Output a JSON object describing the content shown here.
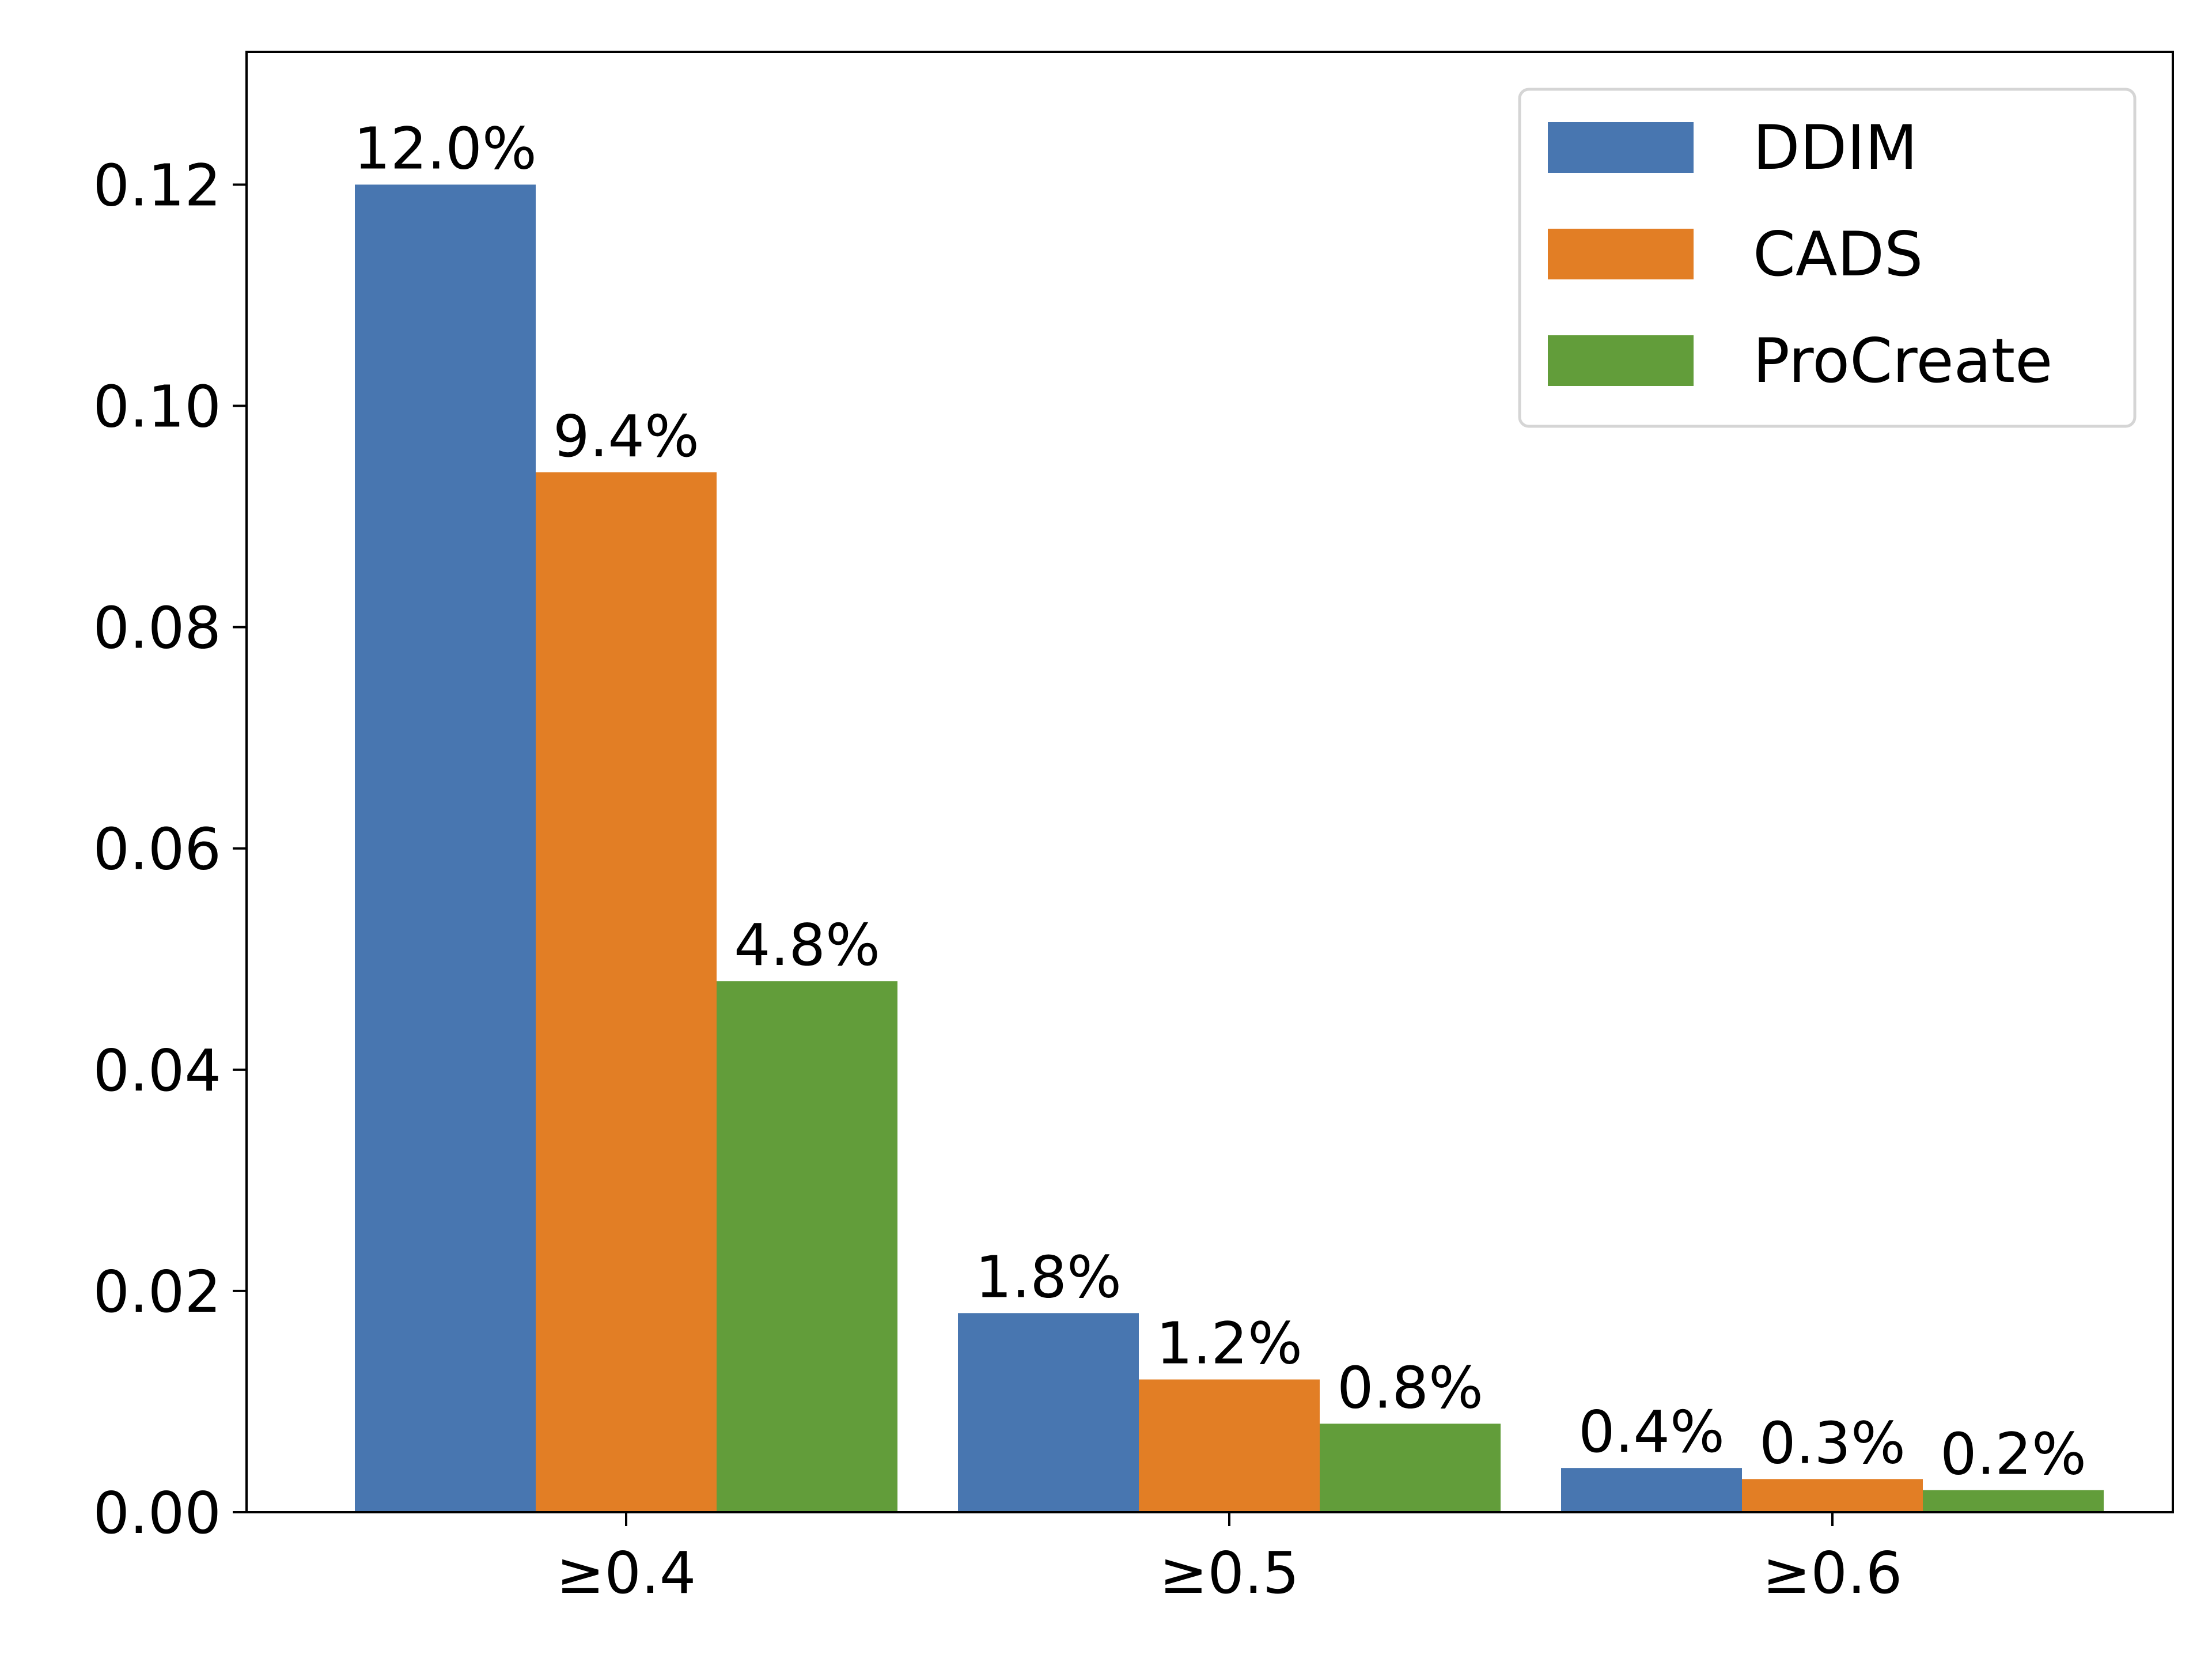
{
  "chart_data": {
    "type": "bar",
    "categories": [
      "≥0.4",
      "≥0.5",
      "≥0.6"
    ],
    "series": [
      {
        "name": "DDIM",
        "color": "#4876B0",
        "values": [
          0.12,
          0.018,
          0.004
        ],
        "labels": [
          "12.0%",
          "1.8%",
          "0.4%"
        ]
      },
      {
        "name": "CADS",
        "color": "#E27E25",
        "values": [
          0.094,
          0.012,
          0.003
        ],
        "labels": [
          "9.4%",
          "1.2%",
          "0.3%"
        ]
      },
      {
        "name": "ProCreate",
        "color": "#629D3A",
        "values": [
          0.048,
          0.008,
          0.002
        ],
        "labels": [
          "4.8%",
          "0.8%",
          "0.2%"
        ]
      }
    ],
    "yticks": [
      0.0,
      0.02,
      0.04,
      0.06,
      0.08,
      0.1,
      0.12
    ],
    "ytick_labels": [
      "0.00",
      "0.02",
      "0.04",
      "0.06",
      "0.08",
      "0.10",
      "0.12"
    ],
    "ylim": [
      0,
      0.132
    ],
    "xlabel": "",
    "ylabel": "",
    "title": "",
    "grid": false,
    "legend_position": "top-right"
  }
}
